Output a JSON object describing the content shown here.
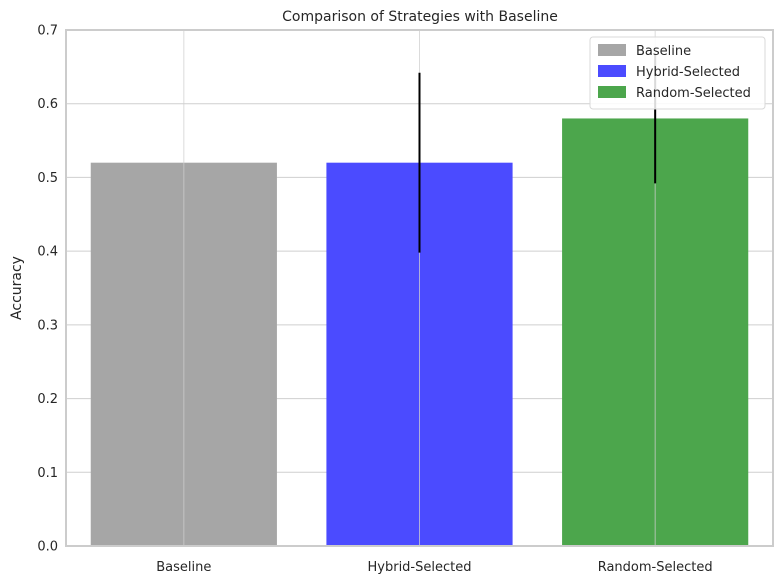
{
  "chart_data": {
    "type": "bar",
    "title": "Comparison of Strategies with Baseline",
    "xlabel": "",
    "ylabel": "Accuracy",
    "ylim": [
      0,
      0.7
    ],
    "yticks": [
      "0.0",
      "0.1",
      "0.2",
      "0.3",
      "0.4",
      "0.5",
      "0.6",
      "0.7"
    ],
    "categories": [
      "Baseline",
      "Hybrid-Selected",
      "Random-Selected"
    ],
    "values": [
      0.52,
      0.52,
      0.58
    ],
    "errors": [
      null,
      0.122,
      0.088
    ],
    "colors": [
      "#a6a6a6",
      "#4b4bff",
      "#4ca64c"
    ],
    "grid": true,
    "legend": {
      "position": "top-right",
      "entries": [
        {
          "label": "Baseline",
          "color": "#a6a6a6"
        },
        {
          "label": "Hybrid-Selected",
          "color": "#4b4bff"
        },
        {
          "label": "Random-Selected",
          "color": "#4ca64c"
        }
      ]
    }
  }
}
